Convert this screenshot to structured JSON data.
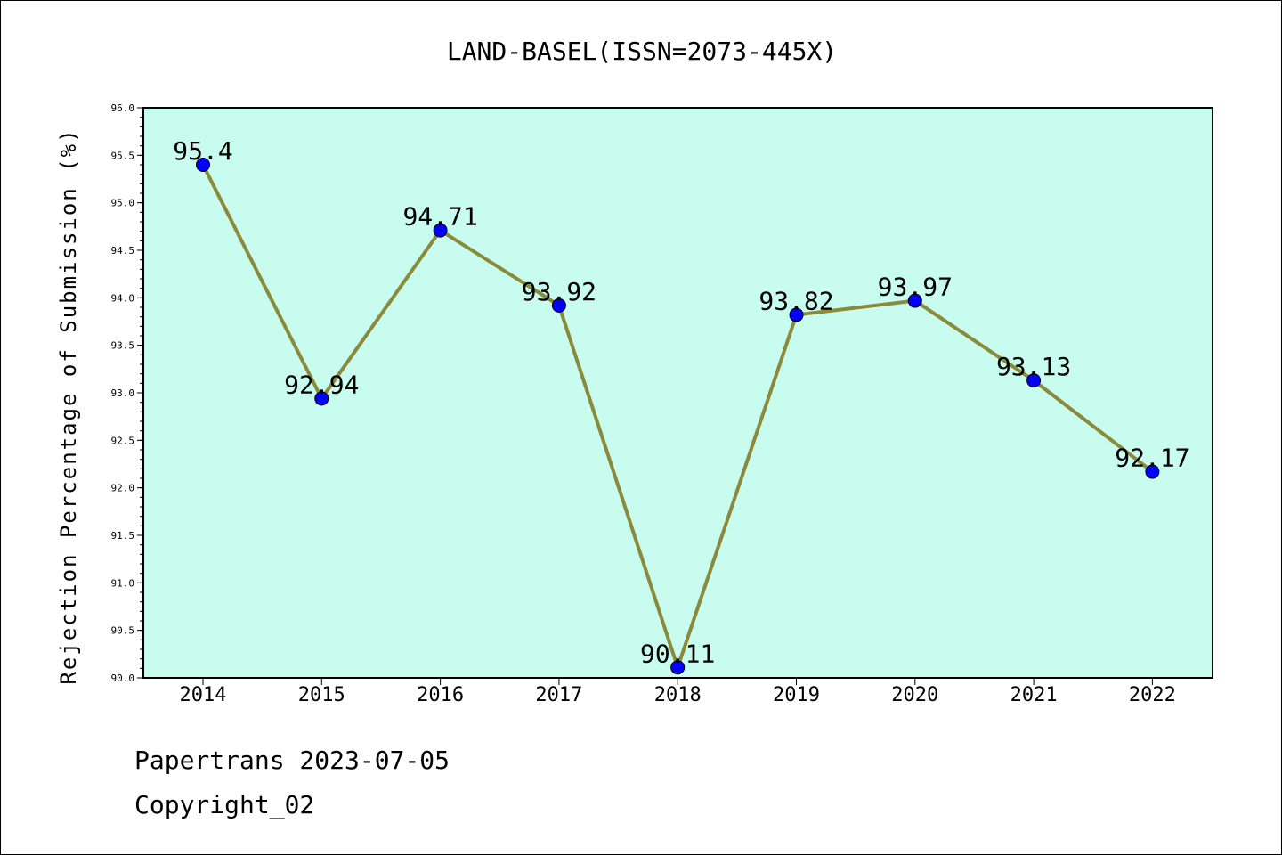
{
  "chart_data": {
    "type": "line",
    "title": "LAND-BASEL(ISSN=2073-445X)",
    "xlabel": "",
    "ylabel": "Rejection Percentage of Submission (%)",
    "categories": [
      "2014",
      "2015",
      "2016",
      "2017",
      "2018",
      "2019",
      "2020",
      "2021",
      "2022"
    ],
    "values": [
      95.4,
      92.94,
      94.71,
      93.92,
      90.11,
      93.82,
      93.97,
      93.13,
      92.17
    ],
    "data_labels": [
      "95.4",
      "92.94",
      "94.71",
      "93.92",
      "90.11",
      "93.82",
      "93.97",
      "93.13",
      "92.17"
    ],
    "ylim": [
      90.0,
      96.0
    ],
    "yticks": [
      "90.0",
      "90.5",
      "91.0",
      "91.5",
      "92.0",
      "92.5",
      "93.0",
      "93.5",
      "94.0",
      "94.5",
      "95.0",
      "95.5",
      "96.0"
    ],
    "grid": false,
    "colors": {
      "plot_background": "#c8fcee",
      "line": "#8b8a3a",
      "marker": "#0000ff"
    }
  },
  "footer": {
    "line1": "Papertrans 2023-07-05",
    "line2": "Copyright_02"
  }
}
